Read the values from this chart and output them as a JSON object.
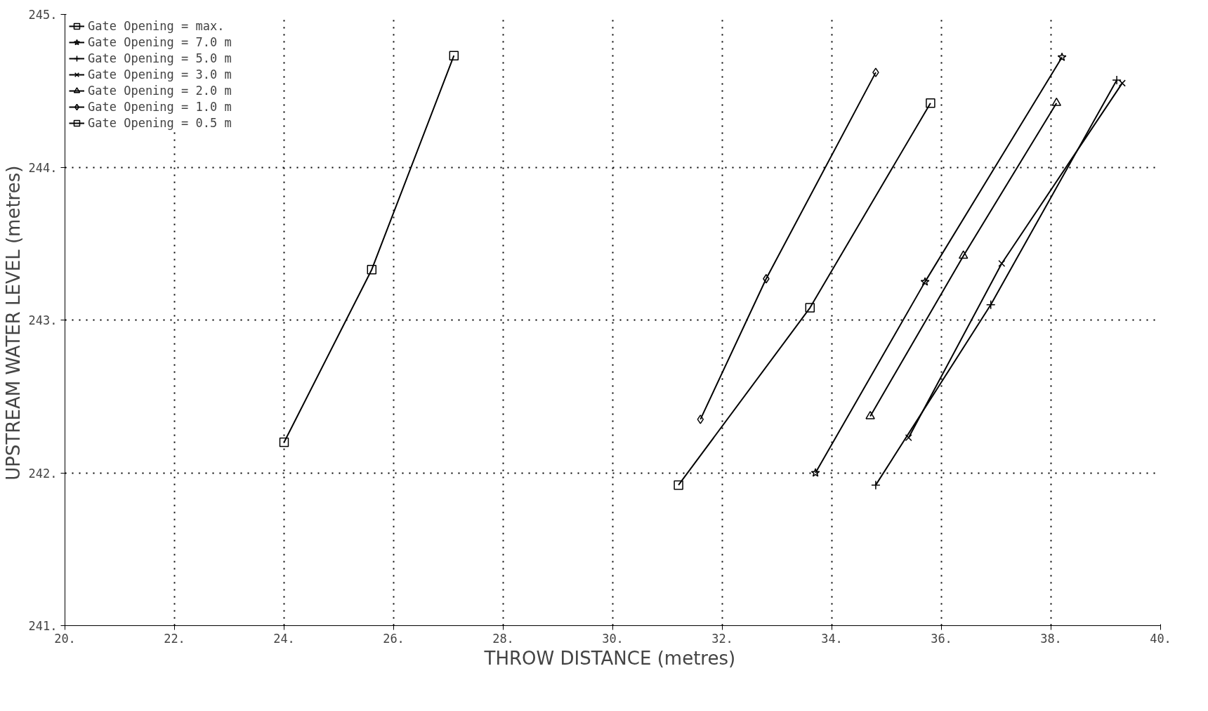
{
  "chart_data": {
    "type": "line",
    "xlabel": "THROW DISTANCE  (metres)",
    "ylabel": "UPSTREAM WATER LEVEL  (metres)",
    "xlim": [
      20,
      40
    ],
    "ylim": [
      241,
      245
    ],
    "xticks": [
      {
        "value": 20,
        "label": "20."
      },
      {
        "value": 22,
        "label": "22."
      },
      {
        "value": 24,
        "label": "24."
      },
      {
        "value": 26,
        "label": "26."
      },
      {
        "value": 28,
        "label": "28."
      },
      {
        "value": 30,
        "label": "30."
      },
      {
        "value": 32,
        "label": "32."
      },
      {
        "value": 34,
        "label": "34."
      },
      {
        "value": 36,
        "label": "36."
      },
      {
        "value": 38,
        "label": "38."
      },
      {
        "value": 40,
        "label": "40."
      }
    ],
    "yticks": [
      {
        "value": 241,
        "label": "241."
      },
      {
        "value": 242,
        "label": "242."
      },
      {
        "value": 243,
        "label": "243."
      },
      {
        "value": 244,
        "label": "244."
      },
      {
        "value": 245,
        "label": "245."
      }
    ],
    "grid": true,
    "legend": "top left",
    "line_style": "solid",
    "series": [
      {
        "name": "Gate Opening = max.",
        "color": "#000000",
        "marker": "square",
        "x": [
          31.2,
          33.6,
          35.8
        ],
        "values": [
          241.92,
          243.08,
          244.42
        ]
      },
      {
        "name": "Gate Opening = 7.0 m",
        "color": "#000000",
        "marker": "star",
        "x": [
          33.7,
          35.7,
          38.2
        ],
        "values": [
          242.0,
          243.25,
          244.72
        ]
      },
      {
        "name": "Gate Opening = 5.0 m",
        "color": "#000000",
        "marker": "cross",
        "x": [
          34.8,
          36.9,
          39.2
        ],
        "values": [
          241.92,
          243.1,
          244.57
        ]
      },
      {
        "name": "Gate Opening = 3.0 m",
        "color": "#000000",
        "marker": "x",
        "x": [
          35.4,
          37.1,
          39.3
        ],
        "values": [
          242.23,
          243.37,
          244.55
        ]
      },
      {
        "name": "Gate Opening = 2.0 m",
        "color": "#000000",
        "marker": "triangle",
        "x": [
          34.7,
          36.4,
          38.1
        ],
        "values": [
          242.37,
          243.42,
          244.42
        ]
      },
      {
        "name": "Gate Opening = 1.0 m",
        "color": "#000000",
        "marker": "diamond",
        "x": [
          31.6,
          32.8,
          34.8
        ],
        "values": [
          242.35,
          243.27,
          244.62
        ]
      },
      {
        "name": "Gate Opening = 0.5 m",
        "color": "#000000",
        "marker": "square",
        "x": [
          24.0,
          25.6,
          27.1
        ],
        "values": [
          242.2,
          243.33,
          244.73
        ]
      }
    ]
  }
}
